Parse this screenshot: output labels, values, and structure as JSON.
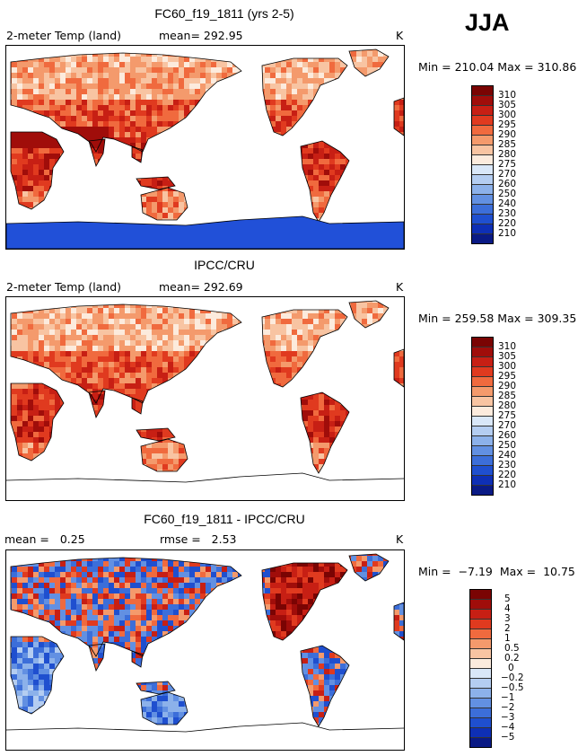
{
  "season": "JJA",
  "units": "K",
  "panels": [
    {
      "title": "FC60_f19_1811 (yrs 2-5)",
      "subtitle_left": "2-meter Temp (land)",
      "subtitle_mid": "mean= 292.95",
      "minmax": "Min = 210.04  Max = 310.86",
      "colorbar_labels": [
        "310",
        "305",
        "300",
        "295",
        "290",
        "285",
        "280",
        "275",
        "270",
        "260",
        "250",
        "240",
        "230",
        "220",
        "210"
      ]
    },
    {
      "title": "IPCC/CRU",
      "subtitle_left": "2-meter Temp (land)",
      "subtitle_mid": "mean= 292.69",
      "minmax": "Min = 259.58  Max = 309.35",
      "colorbar_labels": [
        "310",
        "305",
        "300",
        "295",
        "290",
        "285",
        "280",
        "275",
        "270",
        "260",
        "250",
        "240",
        "230",
        "220",
        "210"
      ]
    },
    {
      "title": "FC60_f19_1811 - IPCC/CRU",
      "subtitle_left": "mean =   0.25",
      "subtitle_mid": "rmse =   2.53",
      "minmax": "Min =  −7.19  Max =  10.75",
      "colorbar_labels": [
        "5",
        "4",
        "3",
        "2",
        "1",
        "0.5",
        "0.2",
        "0",
        "−0.2",
        "−0.5",
        "−1",
        "−2",
        "−3",
        "−4",
        "−5"
      ]
    }
  ],
  "colors": {
    "colorbar": [
      "#7a0403",
      "#a00d0a",
      "#c71f14",
      "#e03a1f",
      "#f06a3e",
      "#f49a6c",
      "#f8c4a2",
      "#fcebdd",
      "#d9e7f8",
      "#b4cdf1",
      "#8cb1ea",
      "#6290e2",
      "#3c6ed9",
      "#1f4fcf",
      "#0e2fb5",
      "#0a1a85"
    ],
    "antarctica_model": "#2150d8",
    "greenland_obs": "#b9cdef"
  }
}
